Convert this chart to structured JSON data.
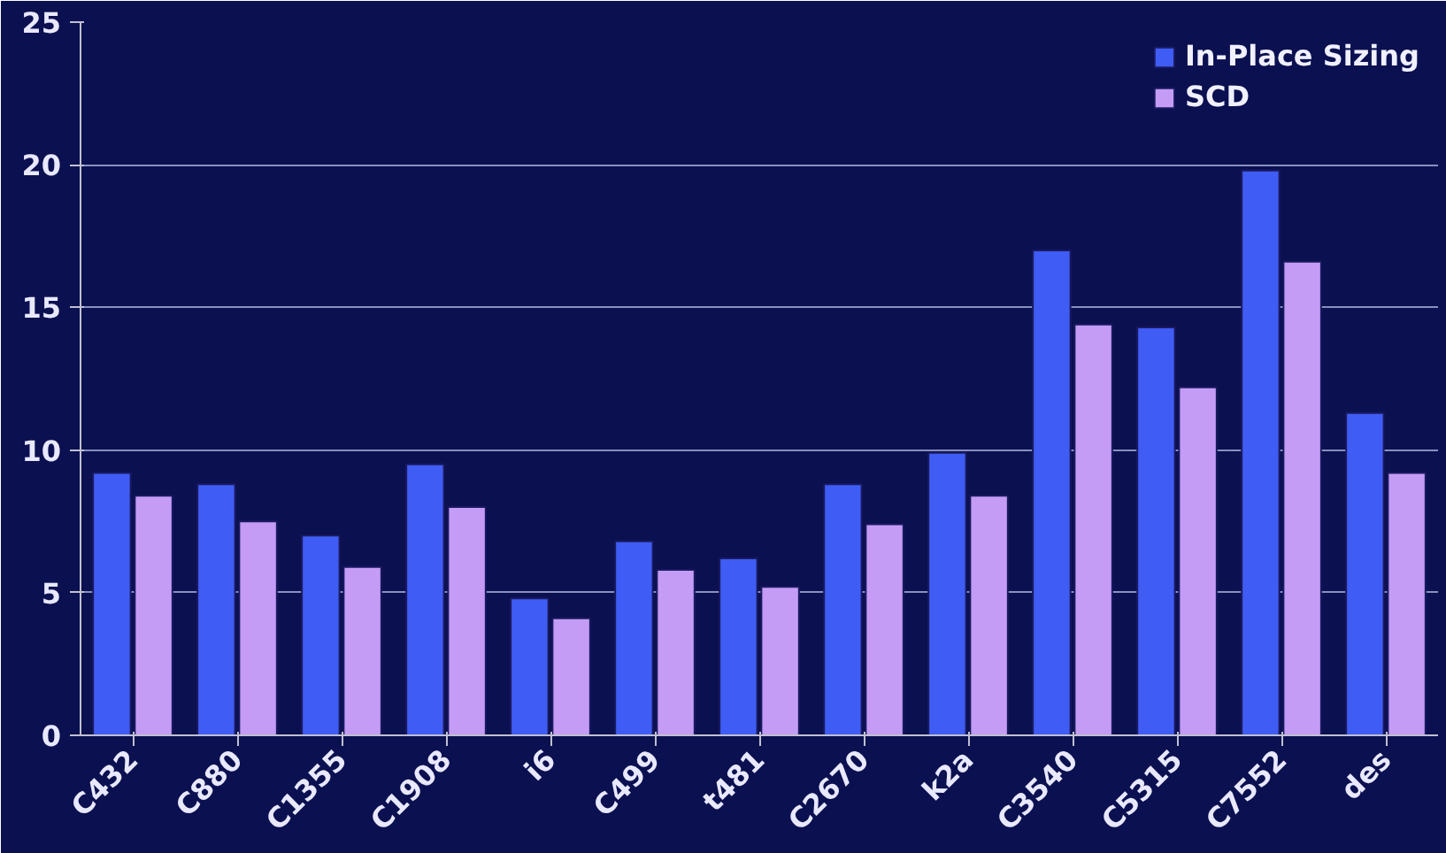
{
  "chart_data": {
    "type": "bar",
    "categories": [
      "C432",
      "C880",
      "C1355",
      "C1908",
      "i6",
      "C499",
      "t481",
      "C2670",
      "k2a",
      "C3540",
      "C5315",
      "C7552",
      "des"
    ],
    "series": [
      {
        "name": "In-Place Sizing",
        "color": "#3f5cf5",
        "values": [
          9.2,
          8.8,
          7.0,
          9.5,
          4.8,
          6.8,
          6.2,
          8.8,
          9.9,
          17.0,
          14.3,
          19.8,
          11.3
        ]
      },
      {
        "name": "SCD",
        "color": "#c49cf5",
        "values": [
          8.4,
          7.5,
          5.9,
          8.0,
          4.1,
          5.8,
          5.2,
          7.4,
          8.4,
          14.4,
          12.2,
          16.6,
          9.2
        ]
      }
    ],
    "ylim": [
      0,
      25
    ],
    "yticks": [
      0,
      5,
      10,
      15,
      20,
      25
    ],
    "grid": "y",
    "legend": "top right"
  }
}
